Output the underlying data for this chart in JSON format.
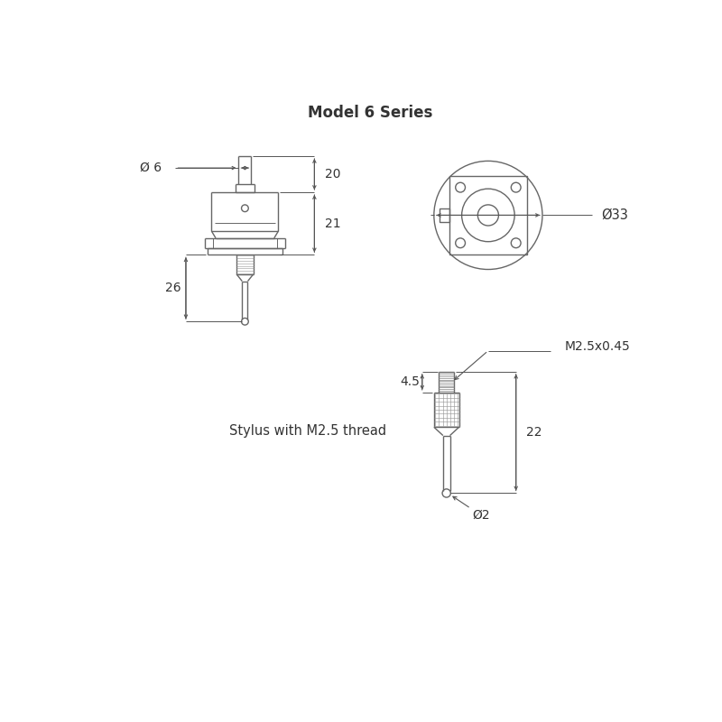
{
  "title": "Model 6 Series",
  "bg_color": "#ffffff",
  "line_color": "#666666",
  "dim_color": "#555555",
  "text_color": "#333333",
  "title_fontsize": 12,
  "label_fontsize": 10,
  "annotations": {
    "phi6": "Ø 6",
    "dim20": "20",
    "dim21": "21",
    "dim26": "26",
    "phi33": "Ø33",
    "m25x045": "M2.5x0.45",
    "dim45": "4.5",
    "dim22": "22",
    "phi2": "Ø2",
    "stylus": "Stylus with M2.5 thread"
  }
}
